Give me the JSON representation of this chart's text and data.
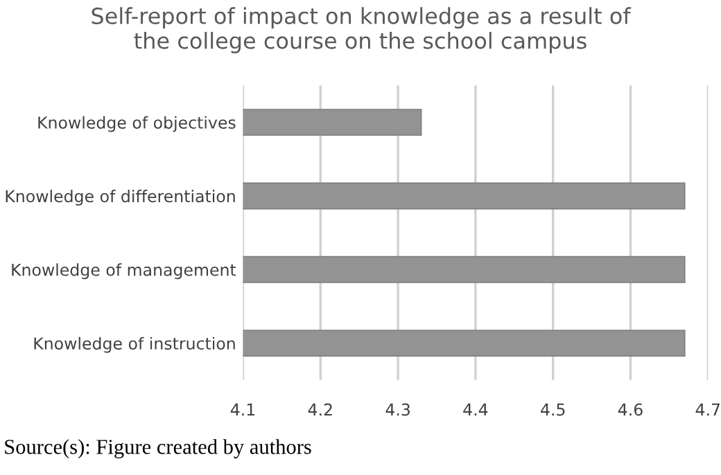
{
  "chart_data": {
    "type": "bar",
    "orientation": "horizontal",
    "title": "Self-report of impact on knowledge as a result of\nthe college course on the school campus",
    "categories": [
      "Knowledge of objectives",
      "Knowledge of differentiation",
      "Knowledge of management",
      "Knowledge of instruction"
    ],
    "values": [
      4.33,
      4.67,
      4.67,
      4.67
    ],
    "color": "#939393",
    "xlim": [
      4.1,
      4.7
    ],
    "xticks": [
      4.1,
      4.2,
      4.3,
      4.4,
      4.5,
      4.6,
      4.7
    ],
    "grid": "x",
    "annotations": [
      "Source(s): Figure created by authors"
    ]
  }
}
